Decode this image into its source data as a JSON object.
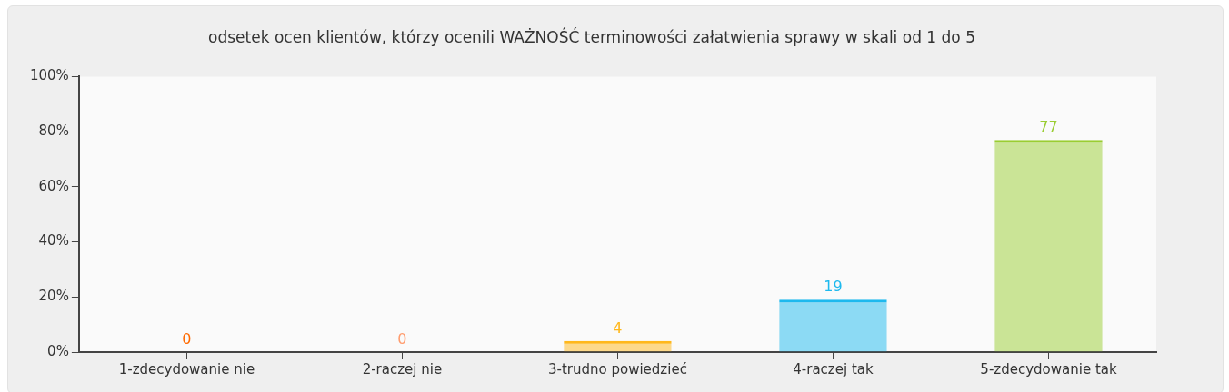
{
  "chart_data": {
    "type": "bar",
    "title": "odsetek ocen klientów, którzy ocenili WAŻNOŚĆ terminowości załatwienia sprawy w skali od 1 do 5",
    "categories": [
      "1-zdecydowanie nie",
      "2-raczej nie",
      "3-trudno powiedzieć",
      "4-raczej tak",
      "5-zdecydowanie tak"
    ],
    "values": [
      0,
      0,
      4,
      19,
      77
    ],
    "colors": [
      "#ff6a00",
      "#ff9c6e",
      "#ffb81c",
      "#1eb9ee",
      "#9acd32"
    ],
    "ylim": [
      0,
      100
    ],
    "yticks": [
      {
        "value": 0,
        "label": "0%"
      },
      {
        "value": 20,
        "label": "20%"
      },
      {
        "value": 40,
        "label": "40%"
      },
      {
        "value": 60,
        "label": "60%"
      },
      {
        "value": 80,
        "label": "80%"
      },
      {
        "value": 100,
        "label": "100%"
      }
    ],
    "grid": false,
    "legend": false,
    "data_labels": true
  }
}
